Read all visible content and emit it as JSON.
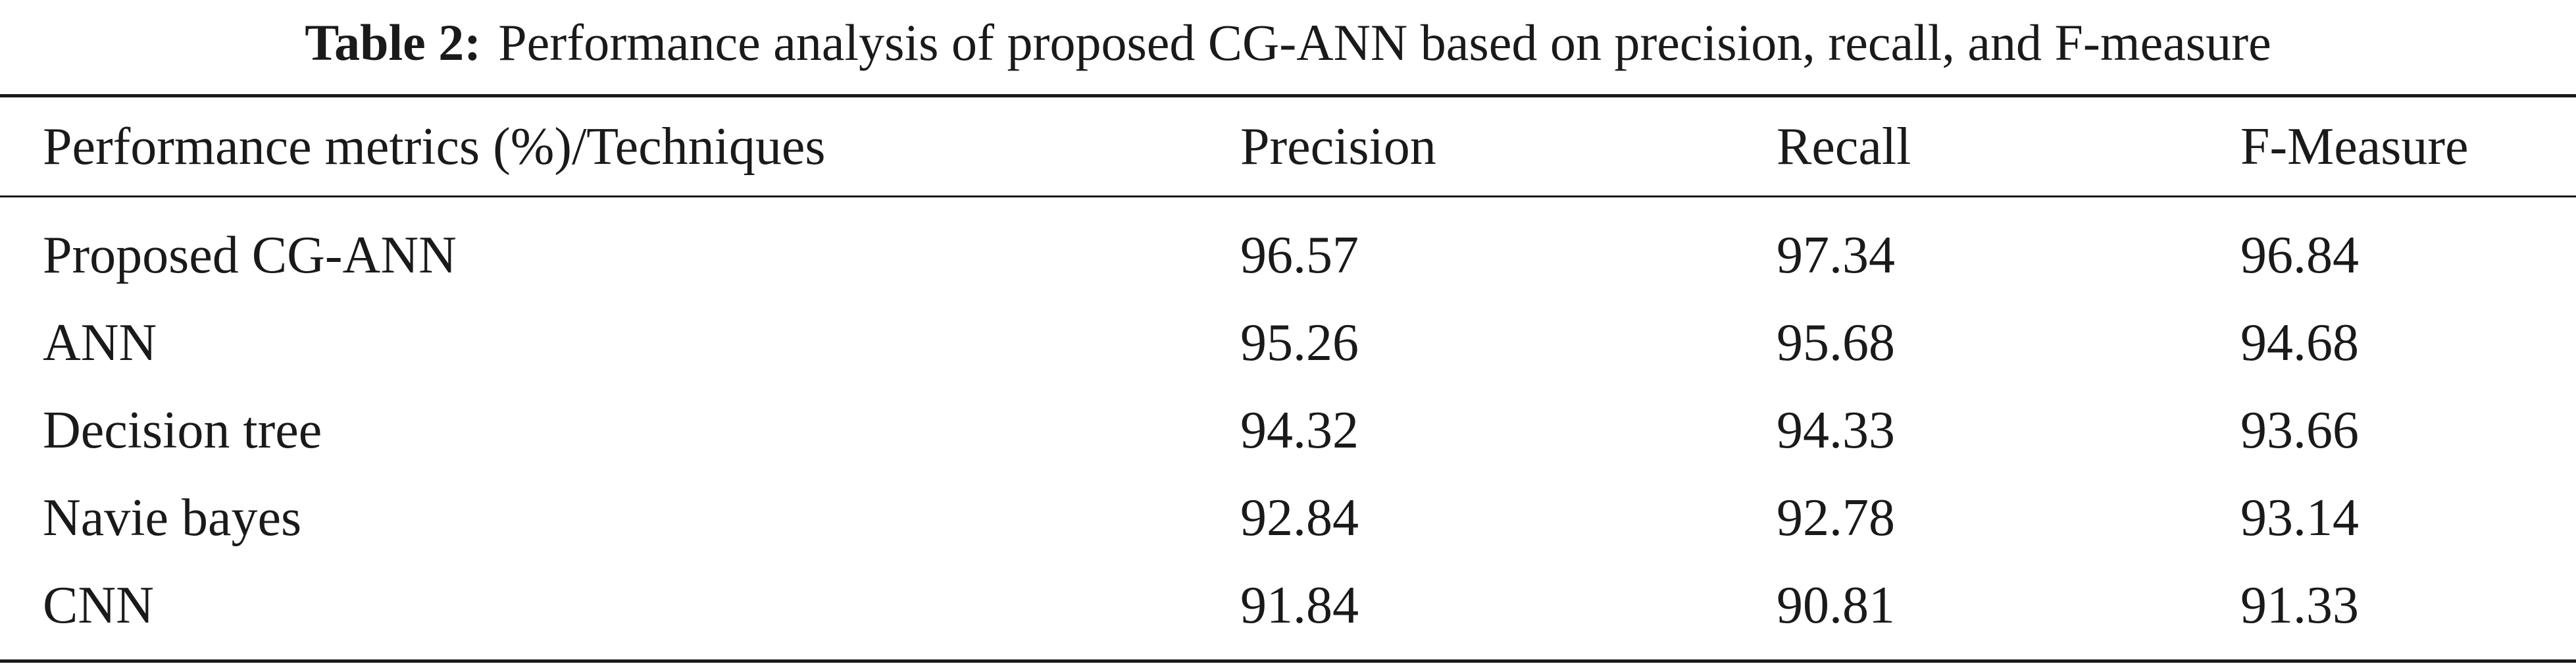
{
  "caption": {
    "label": "Table 2:",
    "text": "Performance analysis of proposed CG-ANN based on precision, recall, and F-measure"
  },
  "table": {
    "headers": [
      "Performance metrics (%)/Techniques",
      "Precision",
      "Recall",
      "F-Measure"
    ],
    "rows": [
      [
        "Proposed CG-ANN",
        "96.57",
        "97.34",
        "96.84"
      ],
      [
        "ANN",
        "95.26",
        "95.68",
        "94.68"
      ],
      [
        "Decision tree",
        "94.32",
        "94.33",
        "93.66"
      ],
      [
        "Navie bayes",
        "92.84",
        "92.78",
        "93.14"
      ],
      [
        "CNN",
        "91.84",
        "90.81",
        "91.33"
      ]
    ]
  }
}
